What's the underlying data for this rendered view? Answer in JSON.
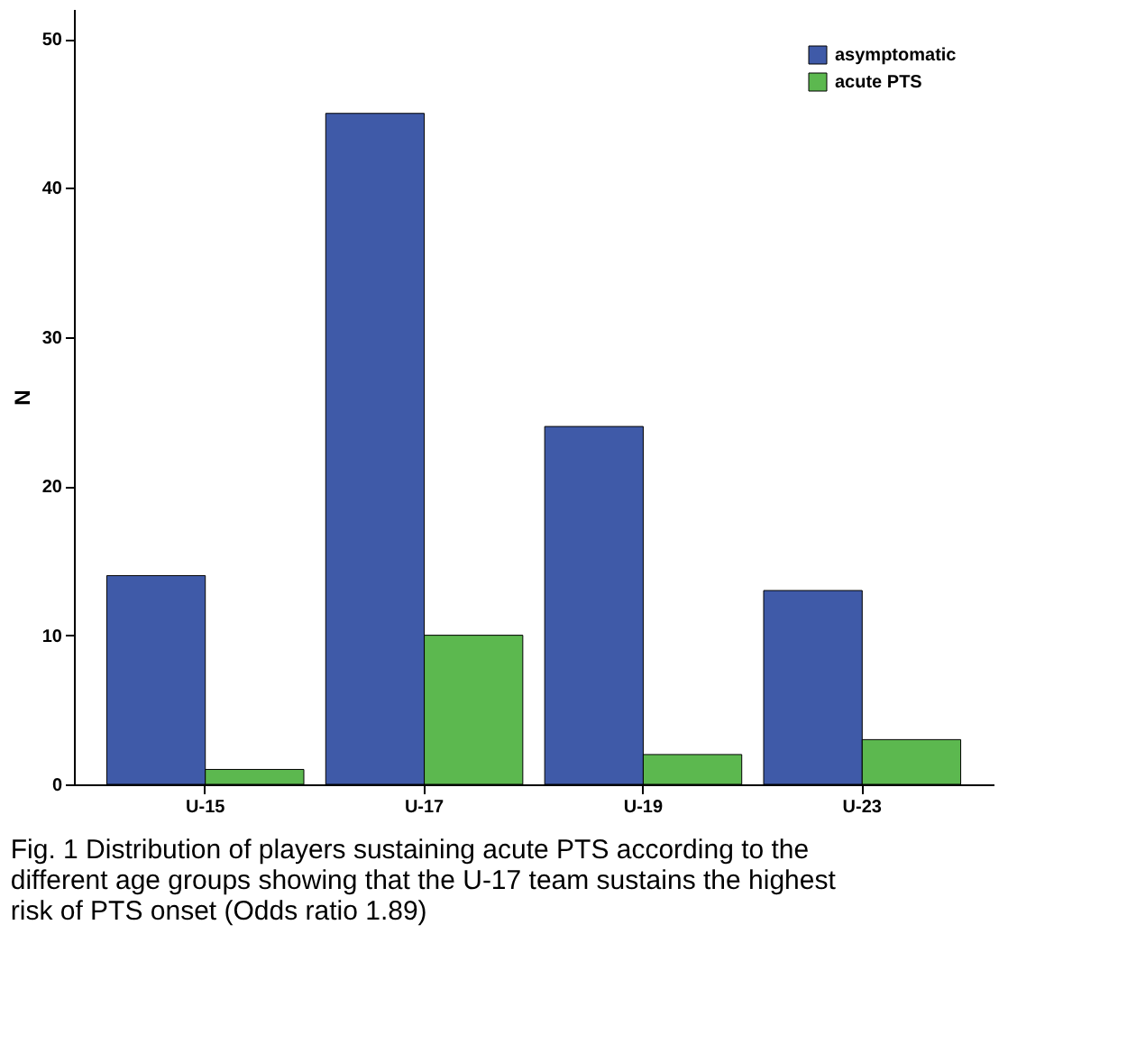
{
  "chart_data": {
    "type": "bar",
    "ylabel": "N",
    "categories": [
      "U-15",
      "U-17",
      "U-19",
      "U-23"
    ],
    "series": [
      {
        "name": "asymptomatic",
        "color": "#3f5aa8",
        "values": [
          14,
          45,
          24,
          13
        ]
      },
      {
        "name": "acute PTS",
        "color": "#5cb84f",
        "values": [
          1,
          10,
          2,
          3
        ]
      }
    ],
    "ylim": [
      0,
      52
    ],
    "yticks": [
      0,
      10,
      20,
      30,
      40,
      50
    ],
    "grid": false,
    "legend": "top right",
    "annotations": [
      "Fig. 1 Distribution of players sustaining acute PTS according to the different age groups showing that the U-17 team sustains the highest risk of PTS onset (Odds ratio 1.89)"
    ]
  }
}
